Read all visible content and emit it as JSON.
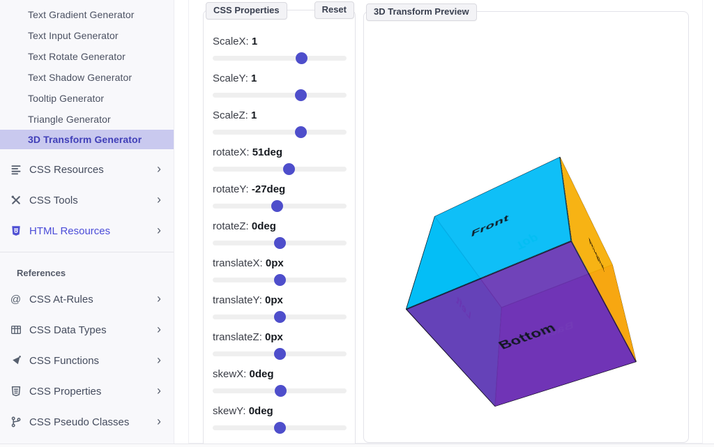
{
  "sidebar": {
    "generators": [
      {
        "label": "Text Gradient Generator",
        "active": false
      },
      {
        "label": "Text Input Generator",
        "active": false
      },
      {
        "label": "Text Rotate Generator",
        "active": false
      },
      {
        "label": "Text Shadow Generator",
        "active": false
      },
      {
        "label": "Tooltip Generator",
        "active": false
      },
      {
        "label": "Triangle Generator",
        "active": false
      },
      {
        "label": "3D Transform Generator",
        "active": true
      }
    ],
    "sections": [
      {
        "label": "CSS Resources",
        "icon": "menu-lines-icon",
        "highlighted": false
      },
      {
        "label": "CSS Tools",
        "icon": "tools-icon",
        "highlighted": false
      },
      {
        "label": "HTML Resources",
        "icon": "html5-shield-icon",
        "highlighted": true
      }
    ],
    "references_heading": "References",
    "references": [
      {
        "label": "CSS At-Rules",
        "icon": "at-icon"
      },
      {
        "label": "CSS Data Types",
        "icon": "table-icon"
      },
      {
        "label": "CSS Functions",
        "icon": "vector-icon"
      },
      {
        "label": "CSS Properties",
        "icon": "css-shield-icon"
      },
      {
        "label": "CSS Pseudo Classes",
        "icon": "branch-icon"
      }
    ]
  },
  "properties_panel": {
    "title": "CSS Properties",
    "reset_label": "Reset",
    "sliders": [
      {
        "label": "ScaleX",
        "value": "1",
        "pct": 66
      },
      {
        "label": "ScaleY",
        "value": "1",
        "pct": 65.5
      },
      {
        "label": "ScaleZ",
        "value": "1",
        "pct": 65.5
      },
      {
        "label": "rotateX",
        "value": "51deg",
        "pct": 56.7
      },
      {
        "label": "rotateY",
        "value": "-27deg",
        "pct": 48
      },
      {
        "label": "rotateZ",
        "value": "0deg",
        "pct": 50
      },
      {
        "label": "translateX",
        "value": "0px",
        "pct": 50
      },
      {
        "label": "translateY",
        "value": "0px",
        "pct": 50
      },
      {
        "label": "translateZ",
        "value": "0px",
        "pct": 50
      },
      {
        "label": "skewX",
        "value": "0deg",
        "pct": 50.5
      },
      {
        "label": "skewY",
        "value": "0deg",
        "pct": 50
      }
    ]
  },
  "preview_panel": {
    "title": "3D Transform Preview",
    "cube": {
      "rotateX": "51deg",
      "rotateY": "-27deg",
      "rotateZ": "0deg",
      "faces": [
        {
          "name": "front",
          "label": "Front",
          "bg": "rgba(0,185,247,0.9)",
          "text_color": "#101720"
        },
        {
          "name": "back",
          "label": "Back",
          "bg": "rgba(128,58,204,0.85)",
          "text_color": "#b49ae0"
        },
        {
          "name": "right",
          "label": "Right",
          "bg": "rgba(255,174,0,0.92)",
          "text_color": "#231500"
        },
        {
          "name": "left",
          "label": "Left",
          "bg": "rgba(0,222,230,0.88)",
          "text_color": "#49609f"
        },
        {
          "name": "top",
          "label": "Top",
          "bg": "rgba(0,218,230,0.4)",
          "text_color": "#19e5c0"
        },
        {
          "name": "bottom",
          "label": "Bottom",
          "bg": "rgba(108,48,178,0.9)",
          "text_color": "#101720"
        }
      ]
    }
  },
  "colors": {
    "accent": "#4e4ecb",
    "active_item_bg": "#c9c9ef",
    "active_item_text": "#403fb8",
    "sidebar_bg": "#f8f8fb",
    "cube_front": "#1fc0fa",
    "cube_left": "#12d2de",
    "cube_right": "#ffb300",
    "cube_bottom": "#7c46bb"
  }
}
